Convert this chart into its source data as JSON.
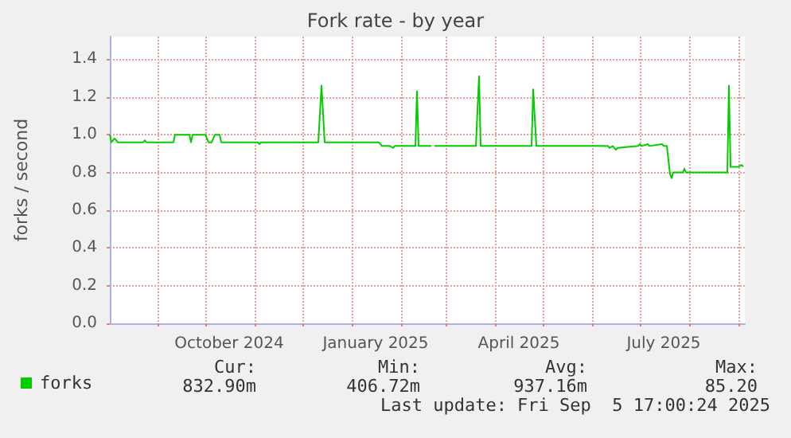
{
  "chart_data": {
    "type": "line",
    "title": "Fork rate - by year",
    "ylabel": "forks / second",
    "x": [
      "2024-08-02",
      "2024-08-03",
      "2024-08-05",
      "2024-08-07",
      "2024-08-23",
      "2024-08-24",
      "2024-08-25",
      "2024-09-11",
      "2024-09-12",
      "2024-09-21",
      "2024-09-22",
      "2024-09-23",
      "2024-10-01",
      "2024-10-03",
      "2024-10-05",
      "2024-10-07",
      "2024-10-10",
      "2024-10-11",
      "2024-11-03",
      "2024-11-04",
      "2024-11-05",
      "2024-12-11",
      "2024-12-13",
      "2024-12-15",
      "2025-01-18",
      "2025-01-20",
      "2025-01-25",
      "2025-01-27",
      "2025-01-28",
      "2025-02-10",
      "2025-02-11",
      "2025-02-12",
      "2025-02-20",
      "2025-02-21",
      "2025-02-22",
      "2025-03-20",
      "2025-03-22",
      "2025-03-23",
      "2025-04-24",
      "2025-04-25",
      "2025-04-27",
      "2025-06-11",
      "2025-06-12",
      "2025-06-14",
      "2025-06-16",
      "2025-06-17",
      "2025-06-30",
      "2025-07-01",
      "2025-07-02",
      "2025-07-06",
      "2025-07-07",
      "2025-07-15",
      "2025-07-16",
      "2025-07-18",
      "2025-07-20",
      "2025-07-21",
      "2025-07-22",
      "2025-07-28",
      "2025-07-29",
      "2025-07-30",
      "2025-08-25",
      "2025-08-26",
      "2025-08-27",
      "2025-09-01",
      "2025-09-03",
      "2025-09-04"
    ],
    "series": [
      {
        "name": "forks",
        "color": "#00cc00",
        "values": [
          1.0,
          0.96,
          0.98,
          0.96,
          0.96,
          0.97,
          0.96,
          0.96,
          1.0,
          1.0,
          0.96,
          1.0,
          1.0,
          0.96,
          0.96,
          1.0,
          1.0,
          0.96,
          0.96,
          0.95,
          0.96,
          0.96,
          1.26,
          0.96,
          0.96,
          0.94,
          0.94,
          0.93,
          0.94,
          0.94,
          1.23,
          0.94,
          0.94,
          null,
          0.94,
          0.94,
          1.31,
          0.94,
          0.94,
          1.24,
          0.94,
          0.94,
          0.93,
          0.94,
          0.92,
          0.93,
          0.94,
          0.95,
          0.94,
          0.95,
          0.94,
          0.95,
          0.94,
          0.94,
          0.79,
          0.77,
          0.8,
          0.8,
          0.82,
          0.8,
          0.8,
          1.26,
          0.83,
          0.83,
          0.84,
          0.83
        ]
      }
    ],
    "xlim": [
      "2024-08-02",
      "2025-09-05"
    ],
    "xticks": [
      {
        "value": "2024-09-01",
        "label": null
      },
      {
        "value": "2024-10-01",
        "label": null
      },
      {
        "value": "2024-11-01",
        "label": null
      },
      {
        "value": "2024-12-01",
        "label": null
      },
      {
        "value": "2025-01-01",
        "label": null
      },
      {
        "value": "2025-02-01",
        "label": null
      },
      {
        "value": "2025-03-01",
        "label": null
      },
      {
        "value": "2025-04-01",
        "label": null
      },
      {
        "value": "2025-05-01",
        "label": null
      },
      {
        "value": "2025-06-01",
        "label": null
      },
      {
        "value": "2025-07-01",
        "label": null
      },
      {
        "value": "2025-08-01",
        "label": null
      },
      {
        "value": "2025-09-01",
        "label": null
      },
      {
        "value": "2024-10-16",
        "label": "October 2024"
      },
      {
        "value": "2025-01-16",
        "label": "January 2025"
      },
      {
        "value": "2025-04-16",
        "label": "April 2025"
      },
      {
        "value": "2025-07-16",
        "label": "July 2025"
      }
    ],
    "ylim": [
      0,
      1.52
    ],
    "yticks": [
      {
        "value": 0,
        "label": "0.0"
      },
      0.2,
      0.4,
      0.6,
      0.8,
      {
        "value": 1,
        "label": "1.0"
      },
      1.2,
      1.4
    ],
    "grid": true,
    "legend": "bottom left",
    "marker": "none",
    "line_style": "solid",
    "annotations": [
      "Cur:",
      "832.90m",
      "Min:",
      "406.72m",
      "Avg:",
      "937.16m",
      "Max:",
      "85.20",
      "Last update: Fri Sep  5 17:00:24 2025"
    ]
  }
}
